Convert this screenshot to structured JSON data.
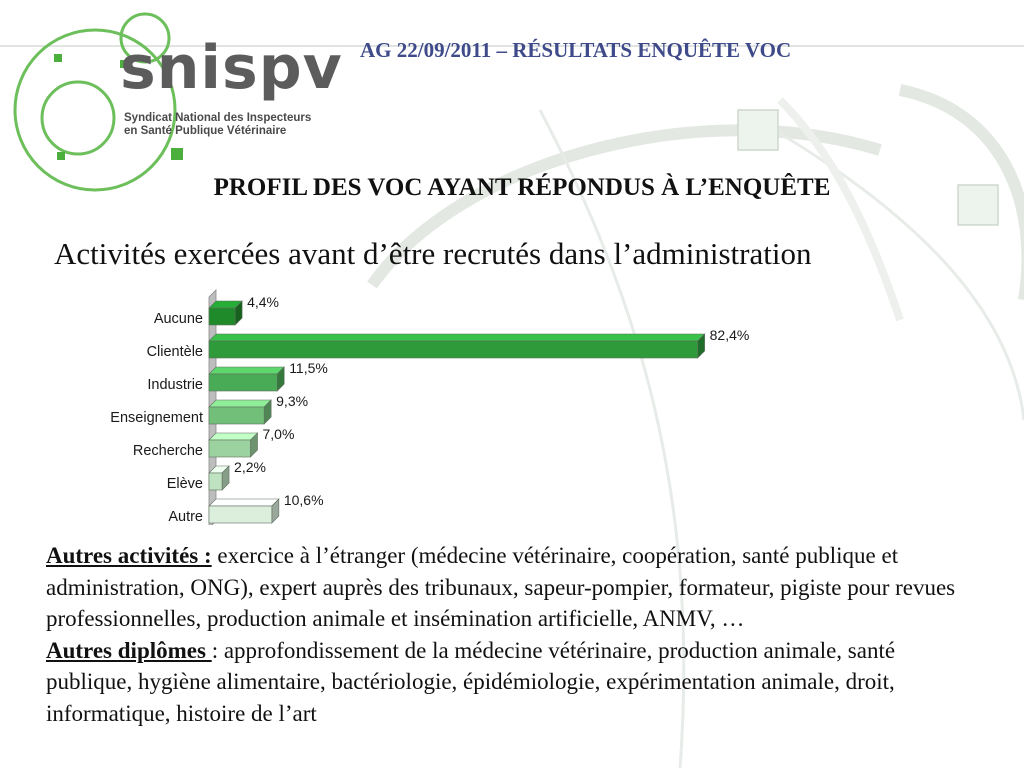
{
  "logo": {
    "name": "snispv",
    "subtitle_line1": "Syndicat National des Inspecteurs",
    "subtitle_line2": "en Santé Publique Vétérinaire"
  },
  "header": {
    "title": "AG 22/09/2011 – RÉSULTATS ENQUÊTE VOC"
  },
  "section": {
    "title": "PROFIL DES VOC AYANT RÉPONDUS À L’ENQUÊTE"
  },
  "chart_data": {
    "type": "bar",
    "orientation": "horizontal",
    "title": "Activités exercées avant d’être recrutés dans l’administration",
    "categories": [
      "Aucune",
      "Clientèle",
      "Industrie",
      "Enseignement",
      "Recherche",
      "Elève",
      "Autre"
    ],
    "values": [
      4.4,
      82.4,
      11.5,
      9.3,
      7.0,
      2.2,
      10.6
    ],
    "value_labels": [
      "4,4%",
      "82,4%",
      "11,5%",
      "9,3%",
      "7,0%",
      "2,2%",
      "10,6%"
    ],
    "colors": [
      "#1e8a2a",
      "#2e9a3a",
      "#4aab56",
      "#72bf7a",
      "#9bd29f",
      "#bfe2c1",
      "#dcefdd"
    ],
    "xlim": [
      0,
      100
    ],
    "grid": false,
    "legend": "none"
  },
  "notes": {
    "other_activities_label": "Autres activités :",
    "other_activities_text": " exercice à l’étranger (médecine vétérinaire, coopération, santé publique et administration, ONG), expert auprès des tribunaux, sapeur-pompier, formateur, pigiste pour revues professionnelles, production animale et insémination artificielle, ANMV, …",
    "other_diplomas_label": "Autres diplômes ",
    "other_diplomas_text": ": approfondissement de la médecine vétérinaire, production animale, santé publique, hygiène alimentaire, bactériologie, épidémiologie, expérimentation animale, droit, informatique, histoire de l’art"
  }
}
